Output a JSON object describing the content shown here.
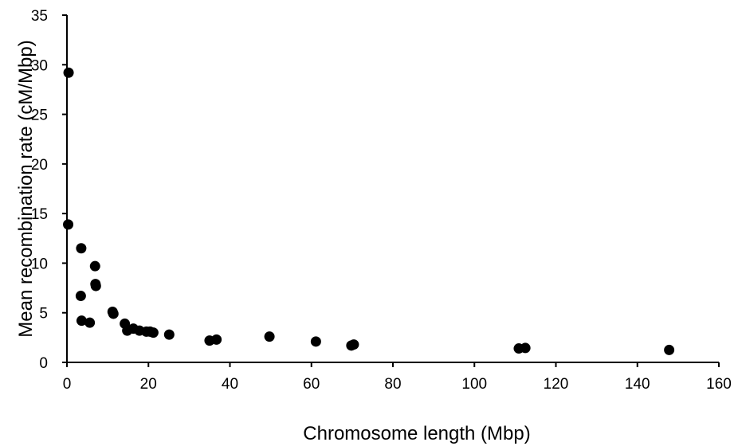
{
  "chart_data": {
    "type": "scatter",
    "title": "",
    "xlabel": "Chromosome length (Mbp)",
    "ylabel": "Mean recombination rate (cM/Mbp)",
    "xlim": [
      0,
      160
    ],
    "ylim": [
      0,
      35
    ],
    "xticks": [
      0,
      20,
      40,
      60,
      80,
      100,
      120,
      140,
      160
    ],
    "yticks": [
      0,
      5,
      10,
      15,
      20,
      25,
      30,
      35
    ],
    "grid": false,
    "legend": "none",
    "marker_color": "#000000",
    "points": [
      {
        "x": 0.4,
        "y": 29.2
      },
      {
        "x": 0.3,
        "y": 13.9
      },
      {
        "x": 3.5,
        "y": 11.5
      },
      {
        "x": 3.4,
        "y": 6.7
      },
      {
        "x": 6.9,
        "y": 9.7
      },
      {
        "x": 7.0,
        "y": 7.9
      },
      {
        "x": 7.1,
        "y": 7.7
      },
      {
        "x": 3.6,
        "y": 4.2
      },
      {
        "x": 5.6,
        "y": 4.0
      },
      {
        "x": 11.2,
        "y": 5.1
      },
      {
        "x": 11.4,
        "y": 4.9
      },
      {
        "x": 14.2,
        "y": 3.9
      },
      {
        "x": 14.8,
        "y": 3.2
      },
      {
        "x": 16.3,
        "y": 3.4
      },
      {
        "x": 17.8,
        "y": 3.2
      },
      {
        "x": 19.5,
        "y": 3.1
      },
      {
        "x": 20.4,
        "y": 3.1
      },
      {
        "x": 21.2,
        "y": 3.0
      },
      {
        "x": 25.1,
        "y": 2.8
      },
      {
        "x": 35.0,
        "y": 2.2
      },
      {
        "x": 36.7,
        "y": 2.3
      },
      {
        "x": 49.7,
        "y": 2.6
      },
      {
        "x": 61.1,
        "y": 2.1
      },
      {
        "x": 69.8,
        "y": 1.7
      },
      {
        "x": 70.4,
        "y": 1.8
      },
      {
        "x": 110.9,
        "y": 1.4
      },
      {
        "x": 112.5,
        "y": 1.45
      },
      {
        "x": 147.8,
        "y": 1.25
      }
    ]
  }
}
